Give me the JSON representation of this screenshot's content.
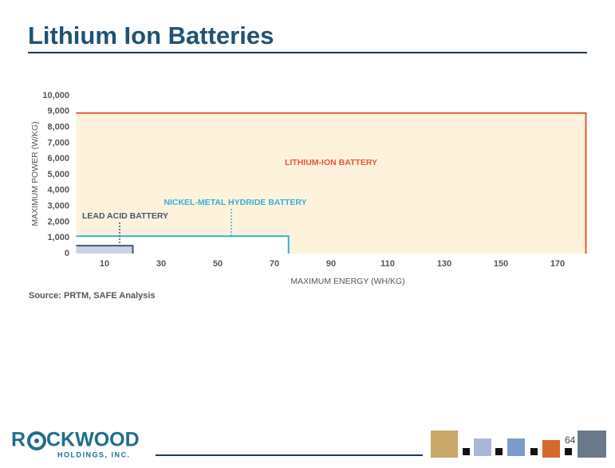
{
  "slide_title": "Lithium Ion Batteries",
  "chart_data": {
    "type": "range-box",
    "y_label": "MAXIMUM POWER (W/KG)",
    "x_label": "MAXIMUM ENERGY (WH/KG)",
    "xlim": [
      0,
      180
    ],
    "ylim": [
      0,
      10000
    ],
    "xticks": [
      10,
      30,
      50,
      70,
      90,
      110,
      130,
      150,
      170
    ],
    "yticks": [
      0,
      {
        "value": 1000,
        "label": "1,000"
      },
      {
        "value": 2000,
        "label": "2,000"
      },
      {
        "value": 3000,
        "label": "3,000"
      },
      {
        "value": 4000,
        "label": "4,000"
      },
      {
        "value": 5000,
        "label": "5,000"
      },
      {
        "value": 6000,
        "label": "6,000"
      },
      {
        "value": 7000,
        "label": "7,000"
      },
      {
        "value": 8000,
        "label": "8,000"
      },
      {
        "value": 9000,
        "label": "9,000"
      },
      {
        "value": 10000,
        "label": "10,000"
      }
    ],
    "series": [
      {
        "name": "LITHIUM-ION BATTERY",
        "color": "#e8573a",
        "fill": "#fdf3dc",
        "max_energy": 180,
        "max_power": 8900
      },
      {
        "name": "NICKEL-METAL HYDRIDE BATTERY",
        "color": "#3aaed8",
        "fill": "#ffffff",
        "max_energy": 75,
        "max_power": 1100
      },
      {
        "name": "LEAD ACID BATTERY",
        "color": "#4a5570",
        "fill": "#c9d3e6",
        "max_energy": 20,
        "max_power": 500
      }
    ]
  },
  "source": "Source: PRTM, SAFE Analysis",
  "logo": {
    "prefix": "R",
    "suffix": "CKWOOD",
    "subtitle": "HOLDINGS, INC."
  },
  "page_number": "64"
}
